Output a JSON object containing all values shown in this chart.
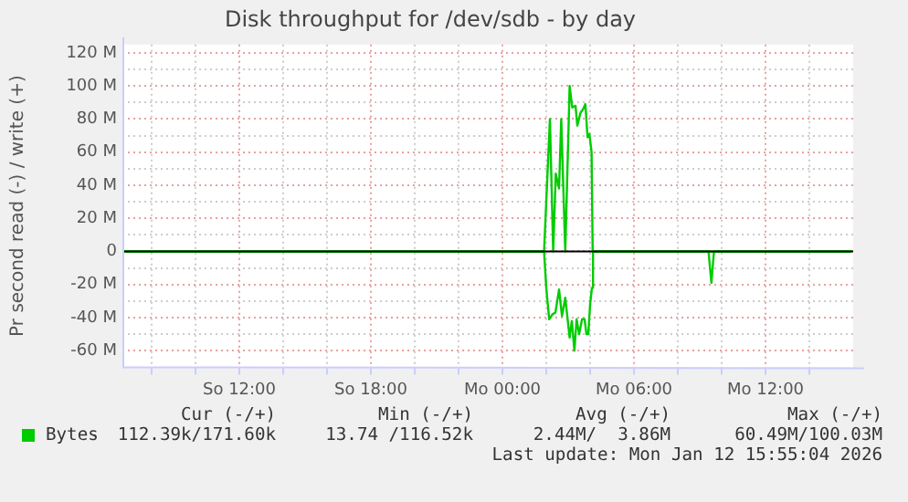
{
  "chart_data": {
    "type": "line",
    "title": "Disk throughput for /dev/sdb - by day",
    "ylabel": "Pr second read (-) / write (+)",
    "xlim": [
      "2026-01-11T06:40",
      "2026-01-12T16:00"
    ],
    "xticks": [
      {
        "value": "2026-01-11T08:00",
        "label": null
      },
      {
        "value": "2026-01-11T10:00",
        "label": null
      },
      {
        "value": "2026-01-11T12:00",
        "label": "So 12:00"
      },
      {
        "value": "2026-01-11T14:00",
        "label": null
      },
      {
        "value": "2026-01-11T16:00",
        "label": null
      },
      {
        "value": "2026-01-11T18:00",
        "label": "So 18:00"
      },
      {
        "value": "2026-01-11T20:00",
        "label": null
      },
      {
        "value": "2026-01-11T22:00",
        "label": null
      },
      {
        "value": "2026-01-12T00:00",
        "label": "Mo 00:00"
      },
      {
        "value": "2026-01-12T02:00",
        "label": null
      },
      {
        "value": "2026-01-12T04:00",
        "label": null
      },
      {
        "value": "2026-01-12T06:00",
        "label": "Mo 06:00"
      },
      {
        "value": "2026-01-12T08:00",
        "label": null
      },
      {
        "value": "2026-01-12T10:00",
        "label": null
      },
      {
        "value": "2026-01-12T12:00",
        "label": "Mo 12:00"
      },
      {
        "value": "2026-01-12T14:00",
        "label": null
      }
    ],
    "ylim": [
      -70,
      125
    ],
    "yticks": [
      {
        "value": -60,
        "label": "-60 M"
      },
      {
        "value": -50,
        "label": null
      },
      {
        "value": -40,
        "label": "-40 M"
      },
      {
        "value": -30,
        "label": null
      },
      {
        "value": -20,
        "label": "-20 M"
      },
      {
        "value": -10,
        "label": null
      },
      {
        "value": 0,
        "label": "0"
      },
      {
        "value": 10,
        "label": null
      },
      {
        "value": 20,
        "label": "20 M"
      },
      {
        "value": 30,
        "label": null
      },
      {
        "value": 40,
        "label": "40 M"
      },
      {
        "value": 50,
        "label": null
      },
      {
        "value": 60,
        "label": "60 M"
      },
      {
        "value": 70,
        "label": null
      },
      {
        "value": 80,
        "label": "80 M"
      },
      {
        "value": 90,
        "label": null
      },
      {
        "value": 100,
        "label": "100 M"
      },
      {
        "value": 110,
        "label": null
      },
      {
        "value": 120,
        "label": "120 M"
      }
    ],
    "grid": true,
    "legend": "bottom",
    "marker": "none",
    "line_style": "solid",
    "series": [
      {
        "name": "Bytes",
        "color": "#00cc00",
        "x": [
          "2026-01-11T06:40",
          "2026-01-12T01:54",
          "2026-01-12T02:10",
          "2026-01-12T02:19",
          "2026-01-12T02:26",
          "2026-01-12T02:35",
          "2026-01-12T02:41",
          "2026-01-12T02:52",
          "2026-01-12T03:04",
          "2026-01-12T03:11",
          "2026-01-12T03:20",
          "2026-01-12T03:25",
          "2026-01-12T03:34",
          "2026-01-12T03:41",
          "2026-01-12T03:47",
          "2026-01-12T03:53",
          "2026-01-12T03:58",
          "2026-01-12T04:04",
          "2026-01-12T04:07",
          "2026-01-12T15:55"
        ],
        "values": [
          0,
          0,
          80,
          0,
          47,
          38,
          80,
          0,
          100,
          87,
          88,
          76,
          84,
          86,
          89,
          69,
          71,
          60,
          0,
          0
        ]
      },
      {
        "color": "#00cc00",
        "x": [
          "2026-01-11T06:40",
          "2026-01-12T01:54",
          "2026-01-12T02:00",
          "2026-01-12T02:08",
          "2026-01-12T02:17",
          "2026-01-12T02:25",
          "2026-01-12T02:35",
          "2026-01-12T02:43",
          "2026-01-12T02:52",
          "2026-01-12T03:04",
          "2026-01-12T03:10",
          "2026-01-12T03:17",
          "2026-01-12T03:23",
          "2026-01-12T03:30",
          "2026-01-12T03:38",
          "2026-01-12T03:45",
          "2026-01-12T03:50",
          "2026-01-12T03:55",
          "2026-01-12T04:00",
          "2026-01-12T04:05",
          "2026-01-12T04:08",
          "2026-01-12T09:24",
          "2026-01-12T09:32",
          "2026-01-12T09:39",
          "2026-01-12T15:55"
        ],
        "values": [
          0,
          0,
          -22,
          -41,
          -38,
          -37,
          -23,
          -39,
          -28,
          -52,
          -42,
          -60,
          -41,
          -50,
          -41,
          -41,
          -50,
          -50,
          -32,
          -22,
          0,
          0,
          -19,
          0,
          0
        ]
      }
    ],
    "ref_lines": [
      {
        "axis": "y",
        "value": 0,
        "color": "#000000"
      }
    ],
    "annotations": [
      "Cur (-/+)",
      "Min (-/+)",
      "Avg (-/+)",
      "Max (-/+)",
      "112.39k/171.60k",
      "13.74 /116.52k",
      "2.44M/  3.86M",
      "60.49M/100.03M",
      "Last update: Mon Jan 12 15:55:04 2026"
    ]
  }
}
